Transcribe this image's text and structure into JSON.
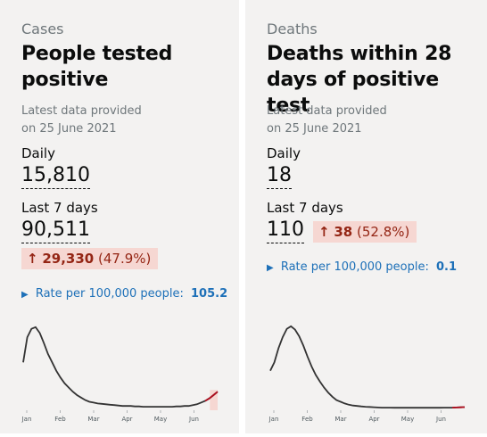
{
  "cards": [
    {
      "caption": "Cases",
      "title_line1": "People tested",
      "title_line2": "positive",
      "latest_line1": "Latest data provided",
      "latest_line2": "on 25 June 2021",
      "daily_label": "Daily",
      "daily_value": "15,810",
      "last7_label": "Last 7 days",
      "last7_value": "90,511",
      "change_arrow": "↑",
      "change_value": "29,330",
      "change_pct": "(47.9%)",
      "rate_label": "Rate per 100,000 people:",
      "rate_value": "105.2",
      "colors": {
        "increase_text": "#942514",
        "increase_bg": "#f6d7d2",
        "link": "#1d70b8"
      },
      "chart_data": {
        "type": "line",
        "x_ticks": [
          "Jan",
          "Feb",
          "Mar",
          "Apr",
          "May",
          "Jun"
        ],
        "series_shape": [
          0.55,
          0.85,
          0.95,
          0.97,
          0.9,
          0.78,
          0.65,
          0.55,
          0.45,
          0.37,
          0.3,
          0.25,
          0.2,
          0.16,
          0.13,
          0.1,
          0.08,
          0.07,
          0.06,
          0.055,
          0.05,
          0.045,
          0.04,
          0.035,
          0.03,
          0.03,
          0.03,
          0.025,
          0.025,
          0.02,
          0.02,
          0.02,
          0.02,
          0.02,
          0.02,
          0.02,
          0.02,
          0.025,
          0.025,
          0.03,
          0.03,
          0.04,
          0.05,
          0.07,
          0.09,
          0.12,
          0.16,
          0.2
        ],
        "highlight_last_days": 7,
        "line_color": "#333333",
        "highlight_color": "#b10e1e"
      }
    },
    {
      "caption": "Deaths",
      "title_line1": "Deaths within 28",
      "title_line2": "days of positive test",
      "latest_line1": "Latest data provided",
      "latest_line2": "on 25 June 2021",
      "daily_label": "Daily",
      "daily_value": "18",
      "last7_label": "Last 7 days",
      "last7_value": "110",
      "change_arrow": "↑",
      "change_value": "38",
      "change_pct": "(52.8%)",
      "rate_label": "Rate per 100,000 people:",
      "rate_value": "0.1",
      "colors": {
        "increase_text": "#942514",
        "increase_bg": "#f6d7d2",
        "link": "#1d70b8"
      },
      "chart_data": {
        "type": "line",
        "x_ticks": [
          "Jan",
          "Feb",
          "Mar",
          "Apr",
          "May",
          "Jun"
        ],
        "series_shape": [
          0.45,
          0.55,
          0.72,
          0.85,
          0.95,
          0.98,
          0.94,
          0.86,
          0.75,
          0.62,
          0.5,
          0.4,
          0.32,
          0.25,
          0.19,
          0.14,
          0.1,
          0.08,
          0.06,
          0.045,
          0.035,
          0.03,
          0.025,
          0.02,
          0.018,
          0.015,
          0.012,
          0.01,
          0.01,
          0.01,
          0.008,
          0.008,
          0.008,
          0.008,
          0.008,
          0.008,
          0.008,
          0.008,
          0.008,
          0.008,
          0.008,
          0.008,
          0.01,
          0.01,
          0.01,
          0.012,
          0.014,
          0.016
        ],
        "highlight_last_days": 7,
        "line_color": "#333333",
        "highlight_color": "#b10e1e"
      }
    }
  ]
}
